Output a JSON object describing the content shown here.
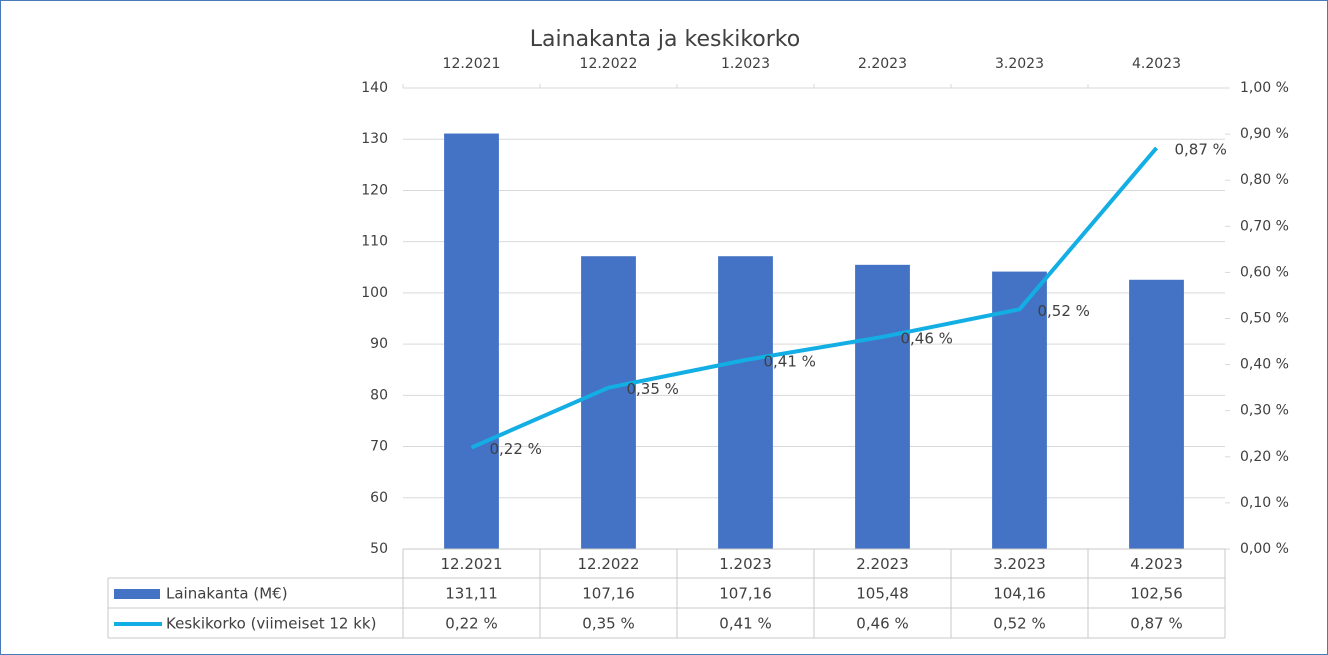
{
  "chart_data": {
    "type": "bar_line",
    "title": "Lainakanta ja keskikorko",
    "categories": [
      "12.2021",
      "12.2022",
      "1.2023",
      "2.2023",
      "3.2023",
      "4.2023"
    ],
    "series": [
      {
        "name": "Lainakanta (M€)",
        "color": "#4472c4",
        "type": "bar",
        "values": [
          131.11,
          107.16,
          107.16,
          105.48,
          104.16,
          102.56
        ],
        "value_labels": [
          "131,11",
          "107,16",
          "107,16",
          "105,48",
          "104,16",
          "102,56"
        ]
      },
      {
        "name": "Keskikorko (viimeiset 12 kk)",
        "color": "#13aee4",
        "type": "line",
        "axis": "y2",
        "values": [
          0.22,
          0.35,
          0.41,
          0.46,
          0.52,
          0.87
        ],
        "value_labels": [
          "0,22 %",
          "0,35 %",
          "0,41 %",
          "0,46 %",
          "0,52 %",
          "0,87 %"
        ]
      }
    ],
    "ylim": [
      50,
      140
    ],
    "yticks": [
      50,
      60,
      70,
      80,
      90,
      100,
      110,
      120,
      130,
      140
    ],
    "y2lim": [
      0,
      1
    ],
    "y2ticks": [
      {
        "value": 0,
        "label": "0,00 %"
      },
      {
        "value": 0.1,
        "label": "0,10 %"
      },
      {
        "value": 0.2,
        "label": "0,20 %"
      },
      {
        "value": 0.3,
        "label": "0,30 %"
      },
      {
        "value": 0.4,
        "label": "0,40 %"
      },
      {
        "value": 0.5,
        "label": "0,50 %"
      },
      {
        "value": 0.6,
        "label": "0,60 %"
      },
      {
        "value": 0.7,
        "label": "0,70 %"
      },
      {
        "value": 0.8,
        "label": "0,80 %"
      },
      {
        "value": 0.9,
        "label": "0,90 %"
      },
      {
        "value": 1,
        "label": "1,00 %"
      }
    ],
    "grid": true
  }
}
